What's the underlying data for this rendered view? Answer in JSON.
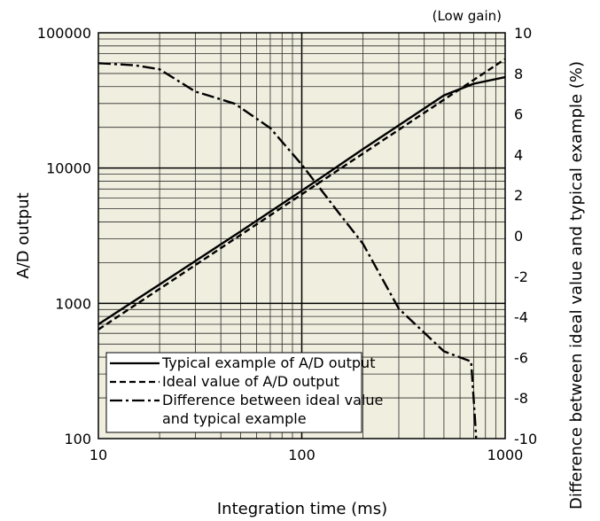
{
  "chart_data": {
    "type": "line",
    "corner_note": "(Low gain)",
    "xlabel": "Integration time (ms)",
    "ylabel": "A/D output",
    "y2label": "Difference between ideal value and typical example (%)",
    "x_scale": "log",
    "y_scale": "log",
    "xlim": [
      10,
      1000
    ],
    "ylim": [
      100,
      100000
    ],
    "y2lim": [
      -10,
      10
    ],
    "x_ticks": [
      "10",
      "100",
      "1000"
    ],
    "y_ticks": [
      "100",
      "1000",
      "10000",
      "100000"
    ],
    "y2_ticks": [
      "10",
      "8",
      "6",
      "4",
      "2",
      "0",
      "-2",
      "-4",
      "-6",
      "-8",
      "-10"
    ],
    "grid": true,
    "background": "#f0eedf",
    "legend_position": "bottom-left",
    "series": [
      {
        "name": "Typical example of A/D output",
        "axis": "left",
        "style": "solid",
        "x": [
          10,
          20,
          50,
          100,
          200,
          500,
          700,
          1000
        ],
        "y": [
          700,
          1380,
          3400,
          6800,
          13800,
          34500,
          42000,
          47000
        ]
      },
      {
        "name": "Ideal value of A/D output",
        "axis": "left",
        "style": "dashed",
        "x": [
          10,
          20,
          50,
          100,
          200,
          500,
          700,
          1000
        ],
        "y": [
          640,
          1280,
          3200,
          6400,
          12800,
          32000,
          44800,
          64000
        ]
      },
      {
        "name": "Difference between ideal value and typical example",
        "axis": "right",
        "style": "dashdot",
        "x": [
          10,
          15,
          20,
          30,
          35,
          47,
          70,
          100,
          150,
          200,
          300,
          500,
          600,
          680,
          710,
          720
        ],
        "y": [
          8.5,
          8.4,
          8.2,
          7.1,
          6.9,
          6.5,
          5.3,
          3.5,
          1.2,
          -0.4,
          -3.6,
          -5.7,
          -6.0,
          -6.2,
          -9,
          -10
        ]
      }
    ]
  }
}
